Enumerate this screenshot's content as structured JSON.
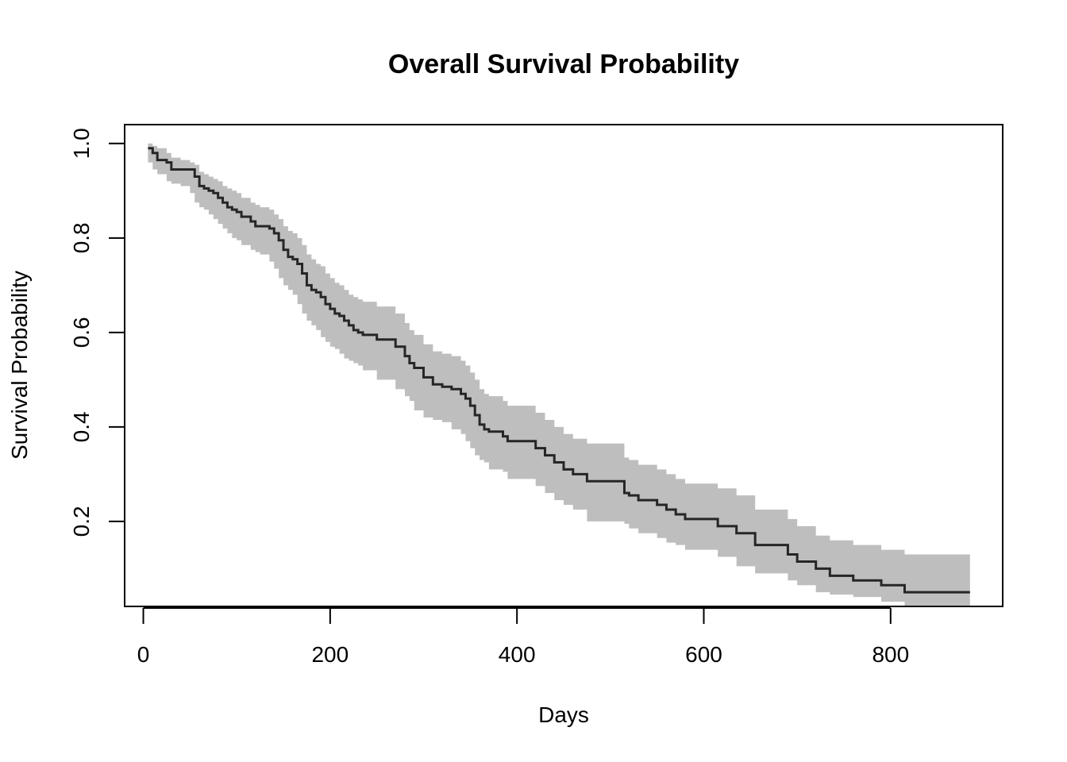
{
  "chart_data": {
    "type": "line",
    "title": "Overall Survival Probability",
    "xlabel": "Days",
    "ylabel": "Survival Probability",
    "xlim": [
      -20,
      920
    ],
    "ylim": [
      0.02,
      1.04
    ],
    "xticks": [
      0,
      200,
      400,
      600,
      800
    ],
    "yticks": [
      0.2,
      0.4,
      0.6,
      0.8,
      1.0
    ],
    "ytick_labels": [
      "0.2",
      "0.4",
      "0.6",
      "0.8",
      "1.0"
    ],
    "grid": false,
    "legend": "none",
    "colors": {
      "line": "#262626",
      "band": "#bebebe",
      "axes": "#000000"
    },
    "series": [
      {
        "style": "step",
        "x": [
          5,
          10,
          15,
          25,
          30,
          40,
          50,
          55,
          60,
          65,
          70,
          75,
          80,
          85,
          90,
          95,
          100,
          105,
          115,
          120,
          125,
          135,
          140,
          145,
          150,
          155,
          160,
          165,
          170,
          175,
          180,
          185,
          190,
          195,
          200,
          205,
          210,
          215,
          220,
          225,
          230,
          235,
          250,
          270,
          280,
          285,
          290,
          300,
          310,
          320,
          330,
          340,
          345,
          350,
          355,
          360,
          365,
          370,
          385,
          390,
          420,
          430,
          440,
          450,
          460,
          475,
          515,
          520,
          530,
          550,
          560,
          570,
          580,
          615,
          635,
          655,
          690,
          700,
          720,
          735,
          760,
          790,
          815,
          885
        ],
        "y": [
          0.99,
          0.98,
          0.965,
          0.96,
          0.945,
          0.945,
          0.945,
          0.93,
          0.91,
          0.905,
          0.9,
          0.895,
          0.885,
          0.875,
          0.865,
          0.86,
          0.855,
          0.845,
          0.835,
          0.825,
          0.825,
          0.82,
          0.81,
          0.795,
          0.775,
          0.76,
          0.755,
          0.745,
          0.725,
          0.7,
          0.69,
          0.685,
          0.675,
          0.66,
          0.65,
          0.64,
          0.635,
          0.625,
          0.615,
          0.605,
          0.6,
          0.595,
          0.585,
          0.57,
          0.55,
          0.535,
          0.525,
          0.505,
          0.49,
          0.485,
          0.48,
          0.47,
          0.46,
          0.445,
          0.425,
          0.405,
          0.395,
          0.39,
          0.38,
          0.37,
          0.355,
          0.34,
          0.325,
          0.31,
          0.3,
          0.285,
          0.26,
          0.255,
          0.245,
          0.235,
          0.225,
          0.215,
          0.205,
          0.19,
          0.175,
          0.15,
          0.13,
          0.115,
          0.1,
          0.085,
          0.075,
          0.065,
          0.05,
          0.05
        ],
        "lower": [
          0.975,
          0.96,
          0.945,
          0.935,
          0.92,
          0.915,
          0.91,
          0.895,
          0.875,
          0.865,
          0.86,
          0.85,
          0.84,
          0.83,
          0.82,
          0.81,
          0.8,
          0.795,
          0.785,
          0.775,
          0.77,
          0.765,
          0.75,
          0.735,
          0.715,
          0.7,
          0.69,
          0.68,
          0.66,
          0.64,
          0.625,
          0.615,
          0.605,
          0.59,
          0.58,
          0.57,
          0.565,
          0.555,
          0.545,
          0.54,
          0.535,
          0.53,
          0.52,
          0.5,
          0.48,
          0.465,
          0.455,
          0.435,
          0.42,
          0.415,
          0.41,
          0.395,
          0.385,
          0.37,
          0.355,
          0.34,
          0.33,
          0.325,
          0.31,
          0.305,
          0.29,
          0.275,
          0.26,
          0.245,
          0.235,
          0.225,
          0.2,
          0.195,
          0.185,
          0.175,
          0.165,
          0.155,
          0.15,
          0.14,
          0.125,
          0.105,
          0.09,
          0.075,
          0.065,
          0.05,
          0.045,
          0.04,
          0.03,
          0.02
        ],
        "upper": [
          1.0,
          0.995,
          0.99,
          0.98,
          0.97,
          0.965,
          0.96,
          0.955,
          0.94,
          0.935,
          0.93,
          0.925,
          0.92,
          0.91,
          0.905,
          0.9,
          0.895,
          0.885,
          0.875,
          0.87,
          0.865,
          0.86,
          0.85,
          0.84,
          0.825,
          0.815,
          0.81,
          0.8,
          0.785,
          0.765,
          0.755,
          0.745,
          0.74,
          0.725,
          0.715,
          0.705,
          0.7,
          0.69,
          0.68,
          0.675,
          0.67,
          0.665,
          0.655,
          0.64,
          0.62,
          0.605,
          0.595,
          0.575,
          0.56,
          0.555,
          0.55,
          0.54,
          0.53,
          0.515,
          0.5,
          0.48,
          0.47,
          0.465,
          0.455,
          0.445,
          0.43,
          0.415,
          0.4,
          0.385,
          0.375,
          0.365,
          0.335,
          0.33,
          0.32,
          0.31,
          0.3,
          0.29,
          0.28,
          0.27,
          0.255,
          0.225,
          0.205,
          0.19,
          0.17,
          0.16,
          0.15,
          0.14,
          0.13,
          0.12
        ]
      }
    ]
  }
}
